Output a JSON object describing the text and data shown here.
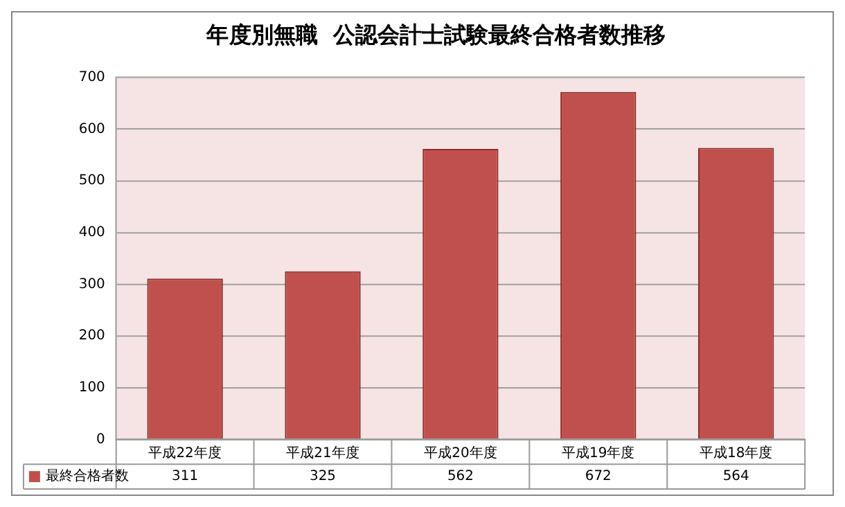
{
  "chart_data": {
    "type": "bar",
    "title": "年度別無職  公認会計士試験最終合格者数推移",
    "categories": [
      "平成22年度",
      "平成21年度",
      "平成20年度",
      "平成19年度",
      "平成18年度"
    ],
    "series": [
      {
        "name": "最終合格者数",
        "color": "#c0504d",
        "values": [
          311,
          325,
          562,
          672,
          564
        ]
      }
    ],
    "ylim": [
      0,
      700
    ],
    "yticks": [
      0,
      100,
      200,
      300,
      400,
      500,
      600,
      700
    ],
    "grid": "y",
    "data_labels": true,
    "legend": "bottom"
  }
}
